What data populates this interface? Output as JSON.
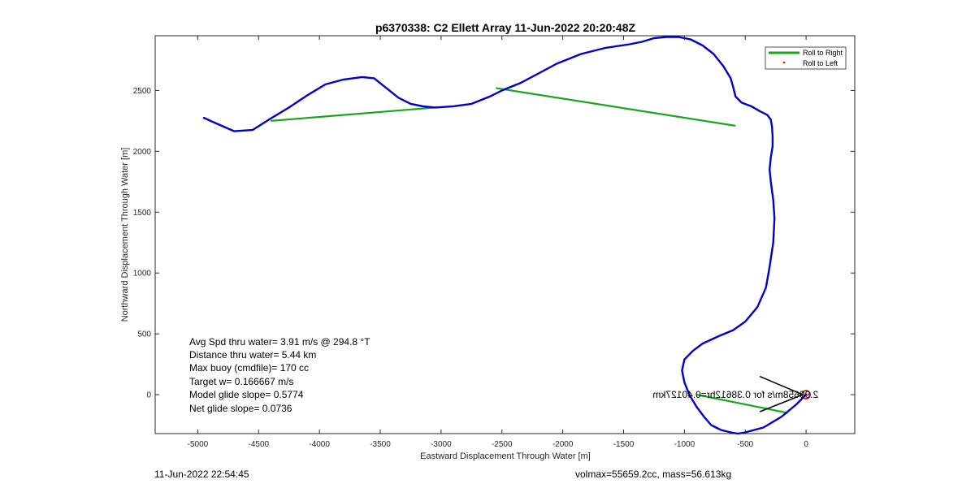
{
  "chart_data": {
    "type": "line",
    "title": "p6370338: C2 Ellett Array 11-Jun-2022 20:20:48Z",
    "xlabel": "Eastward Displacement Through Water [m]",
    "ylabel": "Northward Displacement Through Water [m]",
    "xlim": [
      -5350,
      400
    ],
    "ylim": [
      -320,
      2950
    ],
    "xticks": [
      -5000,
      -4500,
      -4000,
      -3500,
      -3000,
      -2500,
      -2000,
      -1500,
      -1000,
      -500,
      0
    ],
    "yticks": [
      0,
      500,
      1000,
      1500,
      2000,
      2500
    ],
    "grid": false,
    "legend_position": "top-right",
    "legend": [
      "Roll to Right",
      "Roll to Left"
    ],
    "colors": {
      "track": "#0000c8",
      "roll_right": "#1aa51a",
      "roll_left": "#ff0000",
      "start_marker": "#cc0000",
      "arrow": "#000000"
    },
    "series": [
      {
        "x": [
          0,
          -80,
          -200,
          -350,
          -500,
          -560,
          -620,
          -700,
          -780,
          -840,
          -900,
          -960,
          -1000,
          -1020,
          -1000,
          -930,
          -850,
          -720,
          -600,
          -500,
          -400,
          -330,
          -300,
          -270,
          -260,
          -270,
          -290,
          -300,
          -290,
          -275,
          -275,
          -280,
          -290,
          -320,
          -380,
          -450,
          -530,
          -580,
          -600,
          -620,
          -680,
          -760,
          -850,
          -950,
          -1050,
          -1150,
          -1250,
          -1350,
          -1450,
          -1650,
          -1850,
          -2050,
          -2200,
          -2350,
          -2500,
          -2600,
          -2750,
          -2900,
          -3050,
          -3150,
          -3250,
          -3350,
          -3450,
          -3550,
          -3650,
          -3800,
          -3950,
          -4100,
          -4250,
          -4400,
          -4550,
          -4700,
          -4850,
          -4950
        ],
        "y": [
          0,
          -80,
          -180,
          -270,
          -310,
          -320,
          -310,
          -290,
          -250,
          -180,
          -100,
          0,
          100,
          200,
          290,
          360,
          420,
          480,
          530,
          600,
          720,
          880,
          1050,
          1250,
          1450,
          1600,
          1750,
          1850,
          1950,
          2040,
          2120,
          2200,
          2260,
          2300,
          2330,
          2370,
          2400,
          2450,
          2530,
          2600,
          2700,
          2800,
          2870,
          2920,
          2940,
          2940,
          2930,
          2900,
          2880,
          2850,
          2800,
          2720,
          2640,
          2560,
          2500,
          2450,
          2390,
          2370,
          2360,
          2370,
          2390,
          2440,
          2520,
          2600,
          2610,
          2590,
          2550,
          2460,
          2360,
          2270,
          2175,
          2165,
          2230,
          2275
        ]
      }
    ],
    "roll_right_segments": [
      {
        "x": [
          -4400,
          -3050
        ],
        "y": [
          2250,
          2360
        ]
      },
      {
        "x": [
          -2550,
          -580
        ],
        "y": [
          2520,
          2210
        ]
      },
      {
        "x": [
          -900,
          -150
        ],
        "y": [
          0,
          -150
        ]
      }
    ],
    "roll_left_points": {
      "x": [],
      "y": []
    },
    "target_label": "2.90658m/s for 0.38612hr=0.4012 7km",
    "target_text": "2.90658m/s for 0.38612hr=0.40127km",
    "stats": [
      "Avg Spd thru water=  3.91 m/s @ 294.8 °T",
      "Distance thru water=  5.44 km",
      "Max buoy (cmdfile)= 170 cc",
      "Target w= 0.166667 m/s",
      "Model glide slope= 0.5774",
      "Net glide slope= 0.0736"
    ]
  },
  "footer": {
    "date": "11-Jun-2022 22:54:45",
    "volmax": "volmax=55659.2cc, mass=56.613kg"
  }
}
